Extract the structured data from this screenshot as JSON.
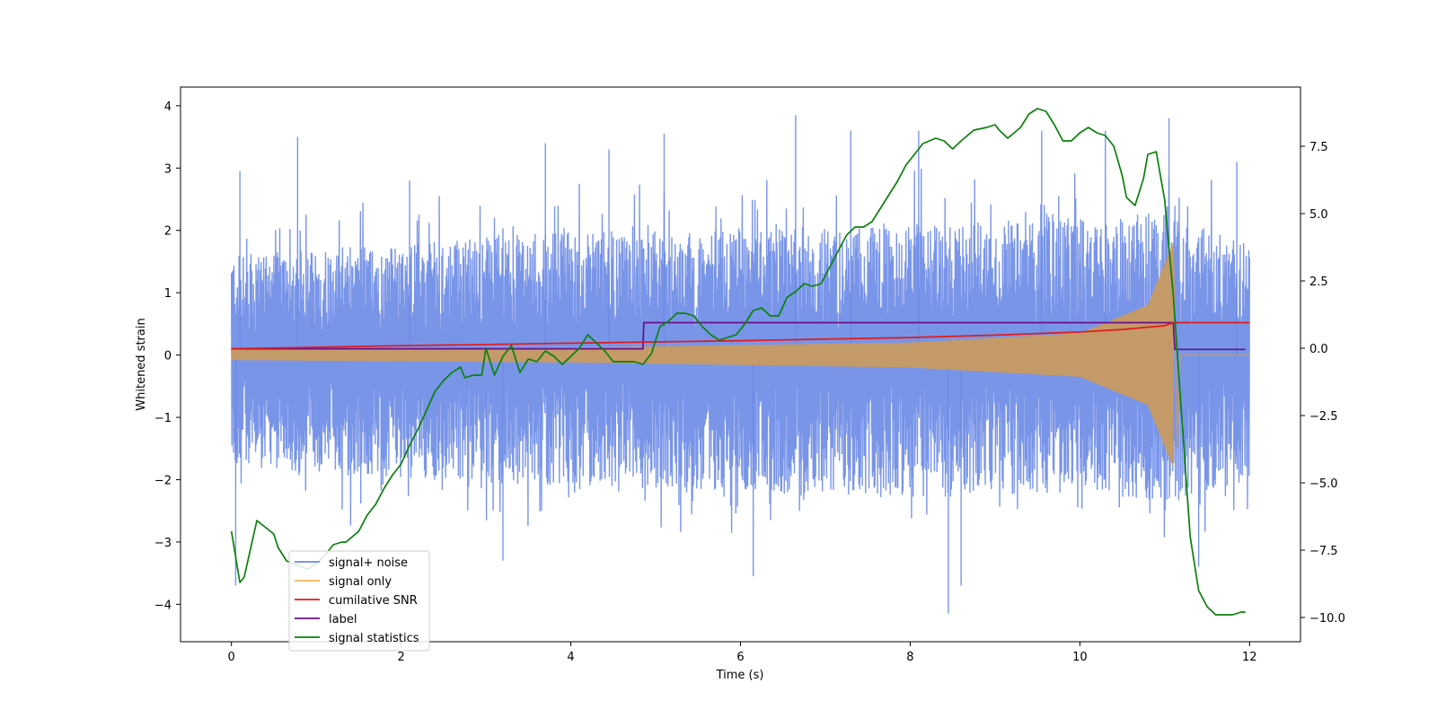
{
  "chart_data": {
    "type": "line",
    "title": "",
    "xlabel": "Time (s)",
    "ylabel": "Whitened strain",
    "y2label": "",
    "xlim": [
      -0.6,
      12.6
    ],
    "ylim": [
      -4.6,
      4.3
    ],
    "y2lim": [
      -10.9,
      9.7
    ],
    "x_ticks": [
      0,
      2,
      4,
      6,
      8,
      10,
      12
    ],
    "x_tick_labels": [
      "0",
      "2",
      "4",
      "6",
      "8",
      "10",
      "12"
    ],
    "y_ticks": [
      4,
      3,
      2,
      1,
      0,
      -1,
      -2,
      -3,
      -4
    ],
    "y_tick_labels": [
      "4",
      "3",
      "2",
      "1",
      "0",
      "−1",
      "−2",
      "−3",
      "−4"
    ],
    "y2_ticks": [
      7.5,
      5.0,
      2.5,
      0.0,
      -2.5,
      -5.0,
      -7.5,
      -10.0
    ],
    "y2_tick_labels": [
      "7.5",
      "5.0",
      "2.5",
      "0.0",
      "−2.5",
      "−5.0",
      "−7.5",
      "−10.0"
    ],
    "grid": false,
    "legend_position": "lower-left",
    "series": [
      {
        "name": "signal+ noise",
        "color": "#6a8ae6",
        "axis": "left",
        "style": "dense-noise",
        "x_range": [
          0,
          12
        ],
        "envelope_upper": [
          [
            0,
            1.6
          ],
          [
            2,
            1.8
          ],
          [
            4,
            2.0
          ],
          [
            6,
            2.0
          ],
          [
            8,
            2.1
          ],
          [
            10,
            2.2
          ],
          [
            11,
            2.3
          ],
          [
            12,
            1.8
          ]
        ],
        "envelope_lower": [
          [
            0,
            -1.8
          ],
          [
            2,
            -2.0
          ],
          [
            4,
            -2.1
          ],
          [
            6,
            -2.2
          ],
          [
            8,
            -2.3
          ],
          [
            10,
            -2.2
          ],
          [
            11,
            -2.4
          ],
          [
            12,
            -2.0
          ]
        ],
        "peaks": [
          [
            0.05,
            -3.7
          ],
          [
            0.1,
            2.95
          ],
          [
            0.78,
            3.5
          ],
          [
            2.1,
            2.8
          ],
          [
            3.2,
            -3.3
          ],
          [
            3.7,
            3.4
          ],
          [
            4.45,
            3.3
          ],
          [
            5.1,
            3.55
          ],
          [
            6.15,
            -3.55
          ],
          [
            6.65,
            3.85
          ],
          [
            7.3,
            3.6
          ],
          [
            8.1,
            3.6
          ],
          [
            8.45,
            -4.15
          ],
          [
            8.6,
            -3.7
          ],
          [
            9.55,
            3.6
          ],
          [
            10.3,
            3.6
          ],
          [
            11.05,
            3.8
          ],
          [
            11.4,
            -3.4
          ],
          [
            11.85,
            3.1
          ]
        ]
      },
      {
        "name": "signal only",
        "color": "#f5b55a",
        "axis": "left",
        "style": "chirp",
        "merger_time": 11.1,
        "amplitude": [
          [
            0,
            0.08
          ],
          [
            4,
            0.12
          ],
          [
            8,
            0.2
          ],
          [
            10,
            0.35
          ],
          [
            10.8,
            0.8
          ],
          [
            11.1,
            1.8
          ]
        ],
        "after_merger": 0.0
      },
      {
        "name": "cumilative SNR",
        "color": "#e11a1a",
        "axis": "left",
        "x": [
          0,
          2,
          4,
          6,
          8,
          9,
          10,
          10.5,
          11.0,
          11.1,
          12.0
        ],
        "y": [
          0.1,
          0.15,
          0.19,
          0.23,
          0.28,
          0.32,
          0.37,
          0.41,
          0.47,
          0.52,
          0.52
        ]
      },
      {
        "name": "label",
        "color": "#6a0f8a",
        "axis": "left",
        "x": [
          0,
          4.85,
          4.86,
          11.1,
          11.12,
          11.95
        ],
        "y": [
          0.1,
          0.1,
          0.52,
          0.52,
          0.09,
          0.09
        ]
      },
      {
        "name": "signal statistics",
        "color": "#0a800a",
        "axis": "right",
        "x": [
          0.0,
          0.1,
          0.15,
          0.3,
          0.5,
          0.55,
          0.65,
          0.8,
          0.9,
          1.0,
          1.1,
          1.2,
          1.3,
          1.35,
          1.5,
          1.6,
          1.7,
          1.8,
          1.9,
          2.0,
          2.1,
          2.2,
          2.3,
          2.4,
          2.5,
          2.6,
          2.7,
          2.75,
          2.85,
          2.95,
          3.0,
          3.1,
          3.2,
          3.3,
          3.4,
          3.5,
          3.6,
          3.7,
          3.8,
          3.9,
          4.0,
          4.1,
          4.2,
          4.3,
          4.4,
          4.5,
          4.6,
          4.75,
          4.85,
          4.95,
          5.05,
          5.15,
          5.25,
          5.35,
          5.45,
          5.55,
          5.65,
          5.75,
          5.85,
          5.95,
          6.05,
          6.15,
          6.25,
          6.35,
          6.45,
          6.55,
          6.65,
          6.75,
          6.85,
          6.95,
          7.05,
          7.15,
          7.25,
          7.35,
          7.45,
          7.55,
          7.65,
          7.75,
          7.85,
          7.95,
          8.05,
          8.15,
          8.3,
          8.4,
          8.5,
          8.6,
          8.75,
          8.9,
          9.0,
          9.05,
          9.15,
          9.3,
          9.4,
          9.5,
          9.6,
          9.7,
          9.8,
          9.9,
          10.0,
          10.1,
          10.2,
          10.3,
          10.4,
          10.5,
          10.55,
          10.65,
          10.75,
          10.8,
          10.9,
          11.0,
          11.1,
          11.2,
          11.3,
          11.4,
          11.5,
          11.6,
          11.7,
          11.8,
          11.9,
          11.95
        ],
        "y": [
          -6.8,
          -8.7,
          -8.5,
          -6.4,
          -6.9,
          -7.4,
          -7.9,
          -8.1,
          -8.2,
          -8.0,
          -7.7,
          -7.3,
          -7.2,
          -7.2,
          -6.8,
          -6.2,
          -5.8,
          -5.2,
          -4.7,
          -4.3,
          -3.6,
          -3.0,
          -2.3,
          -1.6,
          -1.2,
          -0.9,
          -0.7,
          -1.1,
          -1.0,
          -1.0,
          0.0,
          -1.0,
          -0.3,
          0.1,
          -0.9,
          -0.4,
          -0.5,
          -0.1,
          -0.3,
          -0.6,
          -0.3,
          0.0,
          0.5,
          0.2,
          -0.1,
          -0.5,
          -0.5,
          -0.5,
          -0.6,
          -0.2,
          0.8,
          1.0,
          1.3,
          1.3,
          1.2,
          0.8,
          0.5,
          0.3,
          0.4,
          0.5,
          0.9,
          1.4,
          1.5,
          1.2,
          1.2,
          1.9,
          2.1,
          2.4,
          2.3,
          2.4,
          3.0,
          3.6,
          4.2,
          4.5,
          4.5,
          4.7,
          5.2,
          5.7,
          6.2,
          6.8,
          7.2,
          7.6,
          7.8,
          7.7,
          7.4,
          7.7,
          8.1,
          8.2,
          8.3,
          8.1,
          7.8,
          8.2,
          8.7,
          8.9,
          8.8,
          8.3,
          7.7,
          7.7,
          8.0,
          8.2,
          8.0,
          7.9,
          7.5,
          6.4,
          5.6,
          5.3,
          6.3,
          7.2,
          7.3,
          5.5,
          2.0,
          -2.5,
          -7.0,
          -9.0,
          -9.6,
          -9.9,
          -9.9,
          -9.9,
          -9.8,
          -9.8
        ]
      }
    ]
  }
}
